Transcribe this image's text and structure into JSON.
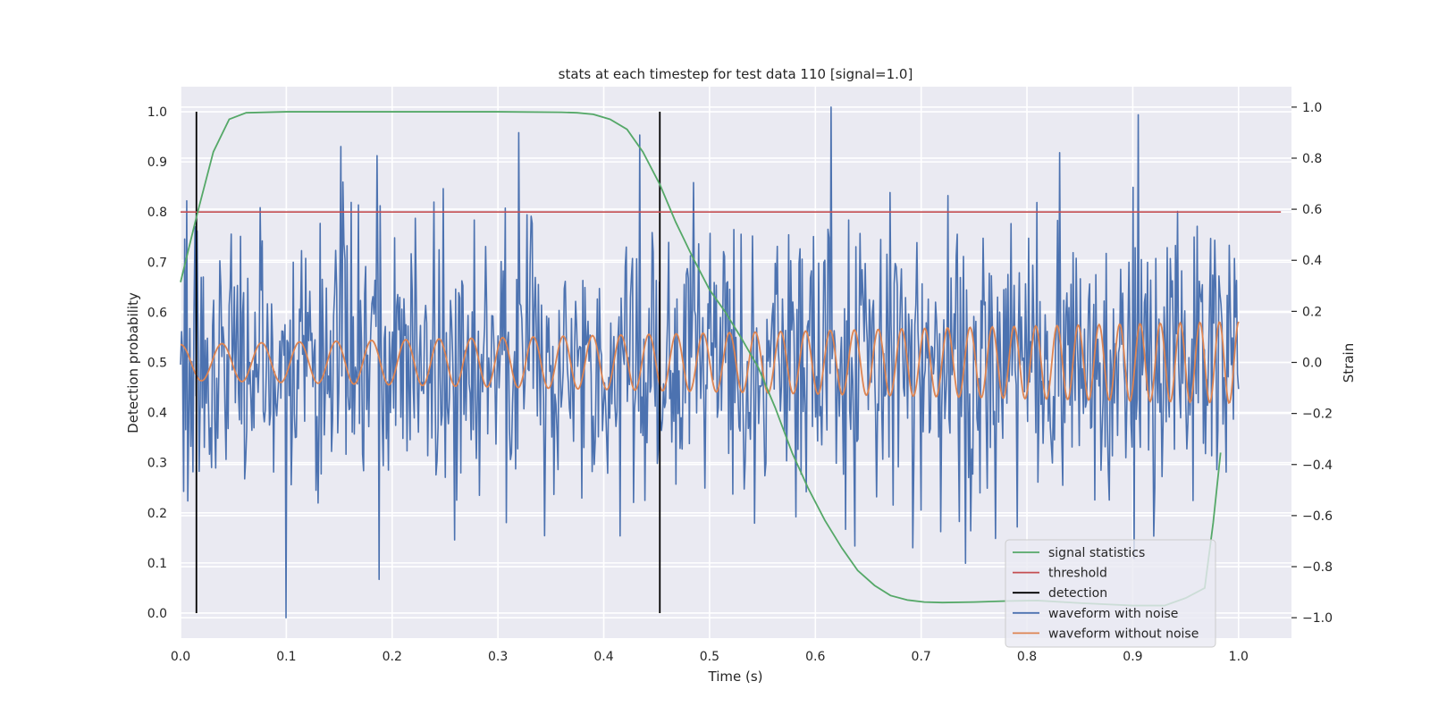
{
  "chart_data": {
    "type": "line",
    "title": "stats at each timestep for test data 110 [signal=1.0]",
    "xlabel": "Time (s)",
    "ylabel": "Detection probability",
    "y2label": "Strain",
    "xlim": [
      0.0,
      1.05
    ],
    "ylim": [
      -0.05,
      1.05
    ],
    "y2lim": [
      -1.08,
      1.08
    ],
    "grid": true,
    "legend_position": "lower-right",
    "x_ticks": [
      "0.0",
      "0.1",
      "0.2",
      "0.3",
      "0.4",
      "0.5",
      "0.6",
      "0.7",
      "0.8",
      "0.9",
      "1.0"
    ],
    "x_tick_values": [
      0.0,
      0.1,
      0.2,
      0.3,
      0.4,
      0.5,
      0.6,
      0.7,
      0.8,
      0.9,
      1.0
    ],
    "y_ticks": [
      "0.0",
      "0.1",
      "0.2",
      "0.3",
      "0.4",
      "0.5",
      "0.6",
      "0.7",
      "0.8",
      "0.9",
      "1.0"
    ],
    "y_tick_values": [
      0.0,
      0.1,
      0.2,
      0.3,
      0.4,
      0.5,
      0.6,
      0.7,
      0.8,
      0.9,
      1.0
    ],
    "y2_ticks": [
      "−1.0",
      "−0.8",
      "−0.6",
      "−0.4",
      "−0.2",
      "0.0",
      "0.2",
      "0.4",
      "0.6",
      "0.8",
      "1.0"
    ],
    "y2_tick_values": [
      -1.0,
      -0.8,
      -0.6,
      -0.4,
      -0.2,
      0.0,
      0.2,
      0.4,
      0.6,
      0.8,
      1.0
    ],
    "series": [
      {
        "name": "signal statistics",
        "color": "#55a868",
        "axis": "left",
        "points": [
          [
            0.0,
            0.66
          ],
          [
            0.015,
            0.79
          ],
          [
            0.031,
            0.92
          ],
          [
            0.046,
            0.985
          ],
          [
            0.062,
            0.998
          ],
          [
            0.1,
            1.0
          ],
          [
            0.2,
            1.0
          ],
          [
            0.3,
            1.0
          ],
          [
            0.36,
            0.999
          ],
          [
            0.375,
            0.998
          ],
          [
            0.39,
            0.995
          ],
          [
            0.406,
            0.985
          ],
          [
            0.422,
            0.965
          ],
          [
            0.437,
            0.92
          ],
          [
            0.453,
            0.855
          ],
          [
            0.468,
            0.78
          ],
          [
            0.484,
            0.71
          ],
          [
            0.5,
            0.645
          ],
          [
            0.515,
            0.6
          ],
          [
            0.531,
            0.545
          ],
          [
            0.546,
            0.49
          ],
          [
            0.562,
            0.41
          ],
          [
            0.578,
            0.32
          ],
          [
            0.593,
            0.25
          ],
          [
            0.609,
            0.185
          ],
          [
            0.625,
            0.13
          ],
          [
            0.64,
            0.085
          ],
          [
            0.656,
            0.055
          ],
          [
            0.671,
            0.035
          ],
          [
            0.687,
            0.026
          ],
          [
            0.703,
            0.022
          ],
          [
            0.72,
            0.021
          ],
          [
            0.75,
            0.022
          ],
          [
            0.78,
            0.024
          ],
          [
            0.81,
            0.025
          ],
          [
            0.85,
            0.02
          ],
          [
            0.9,
            0.015
          ],
          [
            0.93,
            0.015
          ],
          [
            0.95,
            0.03
          ],
          [
            0.968,
            0.05
          ],
          [
            0.976,
            0.18
          ],
          [
            0.983,
            0.32
          ]
        ]
      },
      {
        "name": "threshold",
        "color": "#c44e52",
        "axis": "left",
        "points": [
          [
            0.0,
            0.8
          ],
          [
            1.04,
            0.8
          ]
        ]
      },
      {
        "name": "detection",
        "color": "#000000",
        "axis": "left",
        "vlines": [
          0.015,
          0.453
        ],
        "ymin": 0.0,
        "ymax": 1.0
      },
      {
        "name": "waveform with noise",
        "color": "#4c72b0",
        "axis": "right",
        "x_range": [
          0.0,
          1.0
        ],
        "count": 1024,
        "amplitude_std": 0.27,
        "y_range": [
          -1.0,
          1.0
        ],
        "peaks": [
          [
            0.1,
            -1.0
          ],
          [
            0.615,
            1.0
          ],
          [
            0.188,
            -0.85
          ],
          [
            0.32,
            0.9
          ],
          [
            0.905,
            0.97
          ]
        ]
      },
      {
        "name": "waveform without noise",
        "color": "#dd8452",
        "axis": "right",
        "x_range": [
          0.0,
          1.0
        ],
        "freq_start_hz": 25,
        "freq_end_hz": 55,
        "amp_start": 0.07,
        "amp_end": 0.16
      }
    ]
  }
}
